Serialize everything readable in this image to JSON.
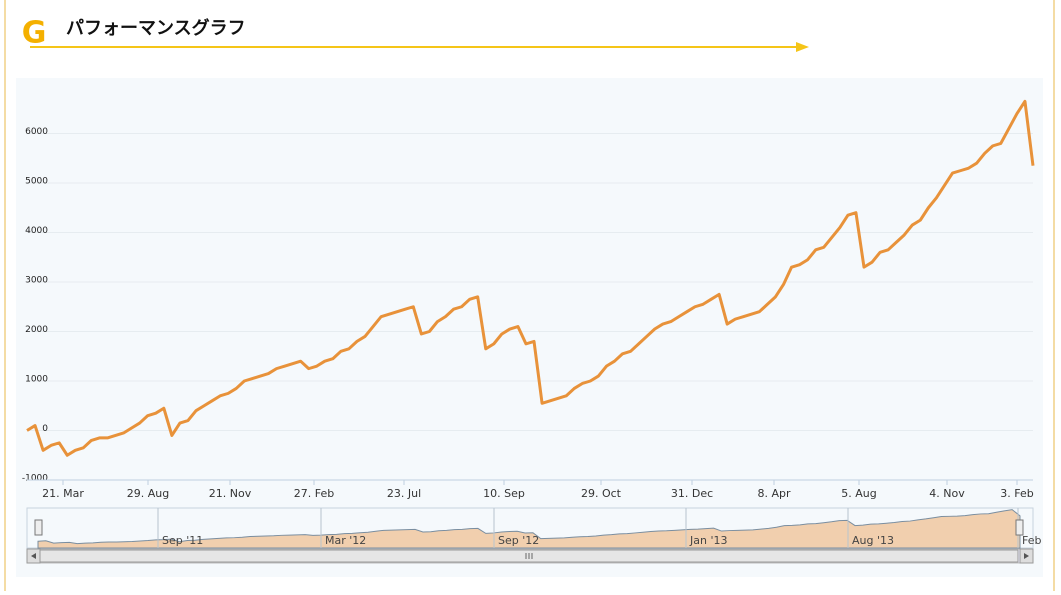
{
  "header": {
    "icon": "G",
    "title": "パフォーマンスグラフ"
  },
  "chart_data": {
    "type": "line",
    "series": [
      {
        "name": "Performance",
        "color": "#e8923a",
        "values": [
          0,
          100,
          -400,
          -300,
          -250,
          -500,
          -400,
          -350,
          -200,
          -150,
          -150,
          -100,
          -50,
          50,
          150,
          300,
          350,
          450,
          -100,
          150,
          200,
          400,
          500,
          600,
          700,
          750,
          850,
          1000,
          1050,
          1100,
          1150,
          1250,
          1300,
          1350,
          1400,
          1250,
          1300,
          1400,
          1450,
          1600,
          1650,
          1800,
          1900,
          2100,
          2300,
          2350,
          2400,
          2450,
          2500,
          1950,
          2000,
          2200,
          2300,
          2450,
          2500,
          2650,
          2700,
          1650,
          1750,
          1950,
          2050,
          2100,
          1750,
          1800,
          550,
          600,
          650,
          700,
          850,
          950,
          1000,
          1100,
          1300,
          1400,
          1550,
          1600,
          1750,
          1900,
          2050,
          2150,
          2200,
          2300,
          2400,
          2500,
          2550,
          2650,
          2750,
          2150,
          2250,
          2300,
          2350,
          2400,
          2550,
          2700,
          2950,
          3300,
          3350,
          3450,
          3650,
          3700,
          3900,
          4100,
          4350,
          4400,
          3300,
          3400,
          3600,
          3650,
          3800,
          3950,
          4150,
          4250,
          4500,
          4700,
          4950,
          5200,
          5250,
          5300,
          5400,
          5600,
          5750,
          5800,
          6100,
          6400,
          6650,
          5350
        ]
      }
    ],
    "ylim": [
      -1000,
      7000
    ],
    "yticks": [
      -1000,
      0,
      1000,
      2000,
      3000,
      4000,
      5000,
      6000
    ],
    "grid": true,
    "xtick_labels": [
      "21. Mar",
      "29. Aug",
      "21. Nov",
      "27. Feb",
      "23. Jul",
      "10. Sep",
      "29. Oct",
      "31. Dec",
      "8. Apr",
      "5. Aug",
      "4. Nov",
      "3. Feb"
    ],
    "navigator_labels": [
      "Sep '11",
      "Mar '12",
      "Sep '12",
      "Jan '13",
      "Aug '13",
      "Feb"
    ]
  }
}
